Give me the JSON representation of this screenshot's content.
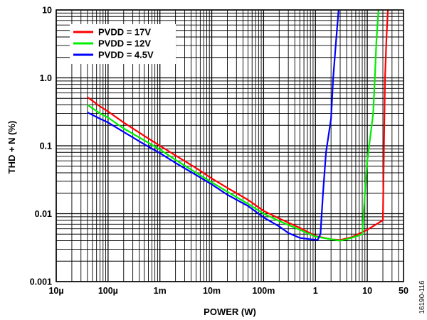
{
  "chart_data": {
    "type": "line",
    "xlabel": "POWER (W)",
    "ylabel": "THD + N (%)",
    "x_scale": "log",
    "y_scale": "log",
    "xlim": [
      1e-05,
      50
    ],
    "ylim": [
      0.001,
      10
    ],
    "grid": true,
    "legend_position": "top-left",
    "x_ticks": [
      {
        "value": 1e-05,
        "label": "10µ"
      },
      {
        "value": 0.0001,
        "label": "100µ"
      },
      {
        "value": 0.001,
        "label": "1m"
      },
      {
        "value": 0.01,
        "label": "10m"
      },
      {
        "value": 0.1,
        "label": "100m"
      },
      {
        "value": 1,
        "label": "1"
      },
      {
        "value": 10,
        "label": "10"
      },
      {
        "value": 50,
        "label": "50"
      }
    ],
    "y_ticks": [
      {
        "value": 0.001,
        "label": "0.001"
      },
      {
        "value": 0.01,
        "label": "0.01"
      },
      {
        "value": 0.1,
        "label": "0.1"
      },
      {
        "value": 1,
        "label": "1.0"
      },
      {
        "value": 10,
        "label": "10"
      }
    ],
    "series": [
      {
        "name": "PVDD = 17V",
        "color": "#ff0000",
        "points": [
          [
            4e-05,
            0.52
          ],
          [
            7e-05,
            0.38
          ],
          [
            0.0001,
            0.32
          ],
          [
            0.0002,
            0.22
          ],
          [
            0.0005,
            0.14
          ],
          [
            0.001,
            0.1
          ],
          [
            0.002,
            0.072
          ],
          [
            0.005,
            0.047
          ],
          [
            0.01,
            0.033
          ],
          [
            0.02,
            0.024
          ],
          [
            0.05,
            0.016
          ],
          [
            0.1,
            0.011
          ],
          [
            0.2,
            0.0085
          ],
          [
            0.5,
            0.0062
          ],
          [
            1,
            0.0047
          ],
          [
            2,
            0.0042
          ],
          [
            3,
            0.0041
          ],
          [
            5,
            0.0045
          ],
          [
            10,
            0.0058
          ],
          [
            20,
            0.008
          ],
          [
            21,
            0.1
          ],
          [
            22,
            1.0
          ],
          [
            23.5,
            4.0
          ],
          [
            25,
            10
          ]
        ]
      },
      {
        "name": "PVDD = 12V",
        "color": "#00ee00",
        "points": [
          [
            4e-05,
            0.4
          ],
          [
            7e-05,
            0.3
          ],
          [
            0.0001,
            0.26
          ],
          [
            0.0002,
            0.18
          ],
          [
            0.0005,
            0.12
          ],
          [
            0.001,
            0.088
          ],
          [
            0.002,
            0.062
          ],
          [
            0.005,
            0.04
          ],
          [
            0.01,
            0.029
          ],
          [
            0.02,
            0.021
          ],
          [
            0.05,
            0.014
          ],
          [
            0.1,
            0.01
          ],
          [
            0.2,
            0.0078
          ],
          [
            0.5,
            0.0058
          ],
          [
            1,
            0.0046
          ],
          [
            2,
            0.0042
          ],
          [
            3,
            0.004
          ],
          [
            4,
            0.0042
          ],
          [
            6,
            0.0046
          ],
          [
            8,
            0.005
          ],
          [
            9,
            0.02
          ],
          [
            10,
            0.06
          ],
          [
            13,
            0.3
          ],
          [
            14,
            1.0
          ],
          [
            15,
            3.5
          ],
          [
            16.5,
            10
          ]
        ]
      },
      {
        "name": "PVDD = 4.5V",
        "color": "#0000ff",
        "points": [
          [
            4e-05,
            0.31
          ],
          [
            7e-05,
            0.25
          ],
          [
            0.0001,
            0.22
          ],
          [
            0.0002,
            0.16
          ],
          [
            0.0005,
            0.105
          ],
          [
            0.001,
            0.078
          ],
          [
            0.002,
            0.056
          ],
          [
            0.005,
            0.037
          ],
          [
            0.01,
            0.027
          ],
          [
            0.02,
            0.019
          ],
          [
            0.05,
            0.013
          ],
          [
            0.1,
            0.0088
          ],
          [
            0.2,
            0.0065
          ],
          [
            0.3,
            0.0052
          ],
          [
            0.5,
            0.0044
          ],
          [
            0.8,
            0.0042
          ],
          [
            1.1,
            0.0041
          ],
          [
            1.25,
            0.005
          ],
          [
            1.4,
            0.02
          ],
          [
            1.6,
            0.08
          ],
          [
            2,
            0.25
          ],
          [
            2.2,
            1.0
          ],
          [
            2.5,
            3.5
          ],
          [
            2.8,
            10
          ]
        ]
      }
    ]
  },
  "figure_id": "16190-116"
}
